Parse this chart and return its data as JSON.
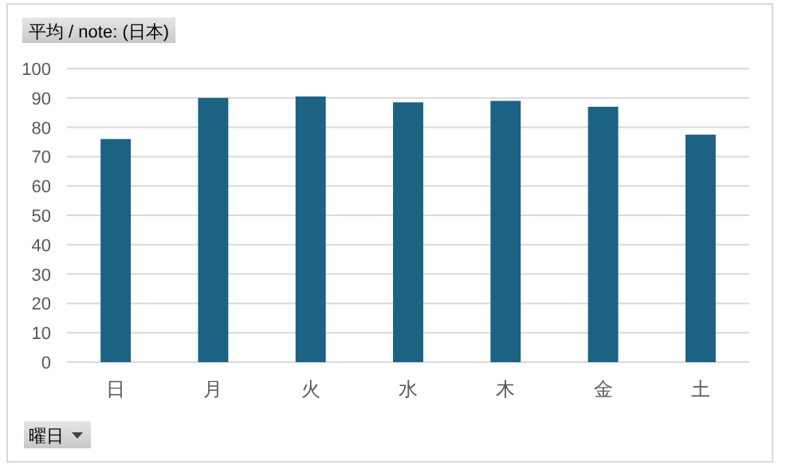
{
  "chart_data": {
    "type": "bar",
    "title": "平均 / note: (日本)",
    "xlabel": "曜日",
    "categories": [
      "日",
      "月",
      "火",
      "水",
      "木",
      "金",
      "土"
    ],
    "values": [
      76,
      90,
      90.5,
      88.5,
      89,
      87,
      77.5
    ],
    "color": "#1b6283",
    "ylim": [
      0,
      100
    ],
    "yticks": [
      0,
      10,
      20,
      30,
      40,
      50,
      60,
      70,
      80,
      90,
      100
    ],
    "grid": "y"
  }
}
